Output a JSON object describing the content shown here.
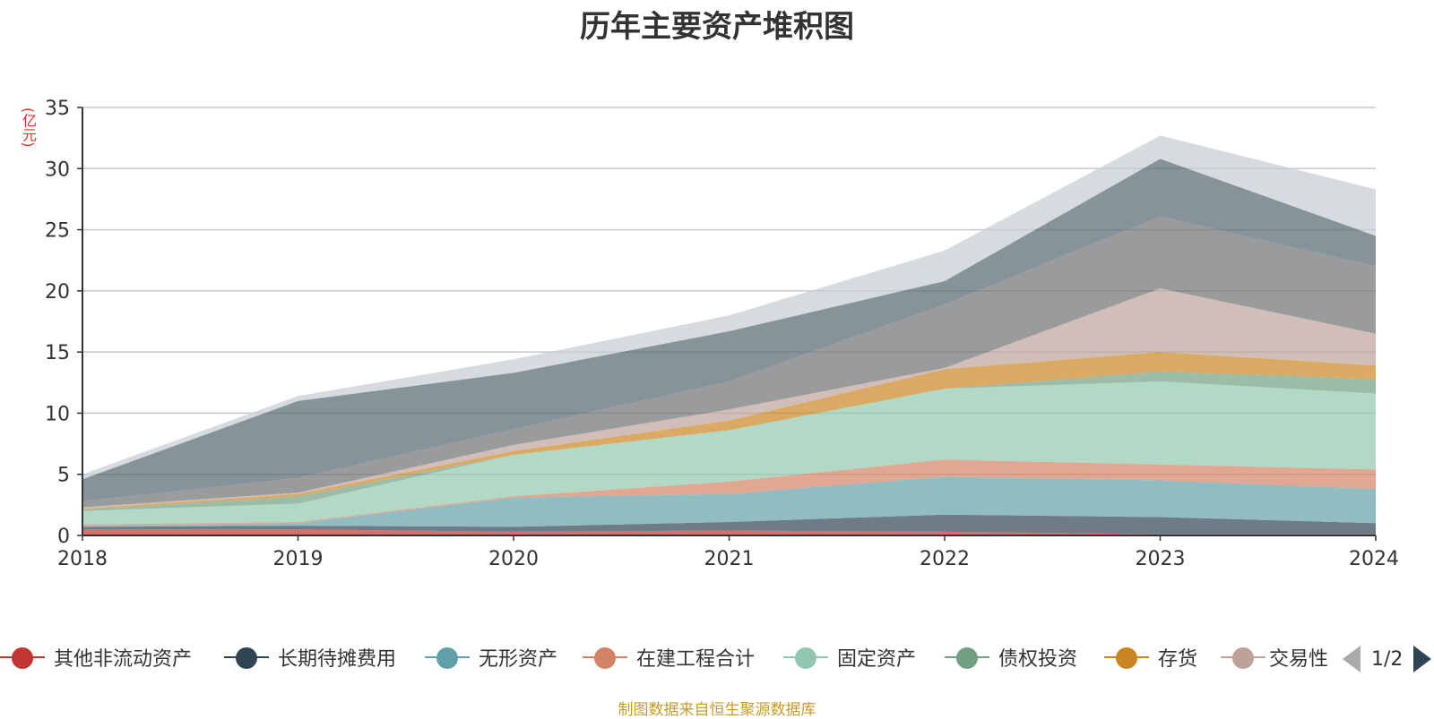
{
  "chart_data": {
    "type": "area",
    "stacked": true,
    "title": "历年主要资产堆积图",
    "unit_label": "(亿元)",
    "xlabel": "",
    "ylabel": "(亿元)",
    "categories": [
      "2018",
      "2019",
      "2020",
      "2021",
      "2022",
      "2023",
      "2024"
    ],
    "ylim": [
      0,
      35
    ],
    "yticks": [
      0,
      5,
      10,
      15,
      20,
      25,
      30,
      35
    ],
    "grid": true,
    "legend_position": "bottom",
    "series": [
      {
        "name": "其他非流动资产",
        "color": "#c23531",
        "values": [
          0.5,
          0.5,
          0.3,
          0.4,
          0.3,
          0.1,
          0.1
        ]
      },
      {
        "name": "长期待摊费用",
        "color": "#2f4554",
        "values": [
          0.2,
          0.3,
          0.4,
          0.7,
          1.4,
          1.4,
          0.9
        ]
      },
      {
        "name": "无形资产",
        "color": "#61a0a8",
        "values": [
          0.1,
          0.2,
          2.4,
          2.3,
          3.1,
          3.0,
          2.8
        ]
      },
      {
        "name": "在建工程合计",
        "color": "#d48265",
        "values": [
          0.1,
          0.1,
          0.1,
          1.0,
          1.4,
          1.3,
          1.6
        ]
      },
      {
        "name": "固定资产",
        "color": "#91c7ae",
        "values": [
          1.1,
          1.5,
          3.4,
          4.2,
          5.8,
          6.8,
          6.2
        ]
      },
      {
        "name": "债权投资",
        "color": "#749f83",
        "values": [
          0.1,
          0.6,
          0.0,
          0.0,
          0.0,
          0.8,
          1.2
        ]
      },
      {
        "name": "存货",
        "color": "#ca8622",
        "values": [
          0.1,
          0.2,
          0.3,
          0.8,
          1.6,
          1.6,
          1.1
        ]
      },
      {
        "name": "交易性金融资产",
        "color": "#bda29a",
        "values": [
          0.1,
          0.1,
          0.5,
          0.9,
          0.1,
          5.2,
          2.6
        ]
      },
      {
        "name": "",
        "color": "#6e7074",
        "values": [
          0.5,
          1.2,
          1.3,
          2.3,
          5.2,
          5.9,
          5.5
        ]
      },
      {
        "name": "",
        "color": "#546570",
        "values": [
          1.8,
          6.3,
          4.6,
          4.1,
          1.9,
          4.7,
          2.5
        ]
      },
      {
        "name": "",
        "color": "#c4ccd3",
        "values": [
          0.4,
          0.4,
          1.1,
          1.3,
          2.5,
          1.9,
          3.8
        ]
      }
    ]
  },
  "legend": {
    "items": [
      {
        "label": "其他非流动资产",
        "color": "#c23531"
      },
      {
        "label": "长期待摊费用",
        "color": "#2f4554"
      },
      {
        "label": "无形资产",
        "color": "#61a0a8"
      },
      {
        "label": "在建工程合计",
        "color": "#d48265"
      },
      {
        "label": "固定资产",
        "color": "#91c7ae"
      },
      {
        "label": "债权投资",
        "color": "#749f83"
      },
      {
        "label": "存货",
        "color": "#ca8622"
      },
      {
        "label": "交易性",
        "color": "#bda29a"
      }
    ],
    "page_indicator": "1/2"
  },
  "source_note": "制图数据来自恒生聚源数据库"
}
